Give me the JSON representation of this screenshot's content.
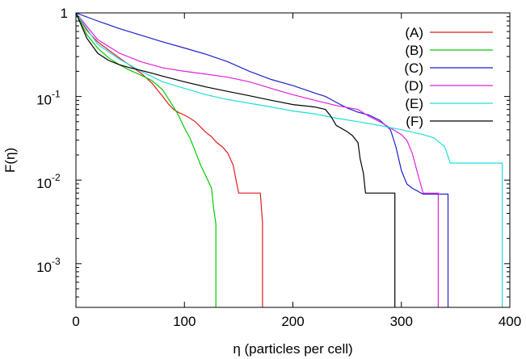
{
  "chart_data": {
    "type": "line",
    "xlabel": "η (particles per cell)",
    "ylabel": "F(η)",
    "xlim": [
      0,
      400
    ],
    "ylim": [
      0.0003,
      1
    ],
    "yscale": "log",
    "grid": false,
    "legend_position": "top-right",
    "x_ticks": [
      0,
      100,
      200,
      300,
      400
    ],
    "x_tick_labels": [
      "0",
      "100",
      "200",
      "300",
      "400"
    ],
    "y_ticks": [
      0.001,
      0.01,
      0.1,
      1
    ],
    "y_tick_base": "10",
    "y_tick_exponents": [
      "-3",
      "-2",
      "-1",
      ""
    ],
    "y_tick_top_label": "1",
    "series": [
      {
        "name": "(A)",
        "color": "#e41a1c",
        "points": [
          [
            0,
            1
          ],
          [
            10,
            0.62
          ],
          [
            20,
            0.45
          ],
          [
            30,
            0.36
          ],
          [
            40,
            0.29
          ],
          [
            50,
            0.235
          ],
          [
            60,
            0.19
          ],
          [
            70,
            0.145
          ],
          [
            75,
            0.12
          ],
          [
            80,
            0.1
          ],
          [
            85,
            0.082
          ],
          [
            90,
            0.07
          ],
          [
            95,
            0.064
          ],
          [
            100,
            0.06
          ],
          [
            105,
            0.055
          ],
          [
            110,
            0.05
          ],
          [
            115,
            0.043
          ],
          [
            120,
            0.037
          ],
          [
            125,
            0.033
          ],
          [
            130,
            0.028
          ],
          [
            135,
            0.025
          ],
          [
            140,
            0.021
          ],
          [
            145,
            0.015
          ],
          [
            147,
            0.011
          ],
          [
            150,
            0.007
          ],
          [
            170,
            0.007
          ],
          [
            172,
            0.0031
          ],
          [
            172,
            0.0003
          ]
        ]
      },
      {
        "name": "(B)",
        "color": "#00cc00",
        "points": [
          [
            0,
            1
          ],
          [
            10,
            0.55
          ],
          [
            20,
            0.38
          ],
          [
            30,
            0.29
          ],
          [
            40,
            0.24
          ],
          [
            50,
            0.205
          ],
          [
            60,
            0.18
          ],
          [
            70,
            0.155
          ],
          [
            80,
            0.12
          ],
          [
            85,
            0.095
          ],
          [
            90,
            0.075
          ],
          [
            95,
            0.058
          ],
          [
            100,
            0.042
          ],
          [
            105,
            0.032
          ],
          [
            110,
            0.022
          ],
          [
            115,
            0.015
          ],
          [
            120,
            0.011
          ],
          [
            125,
            0.008
          ],
          [
            127,
            0.0045
          ],
          [
            129,
            0.003
          ],
          [
            129,
            0.0003
          ]
        ]
      },
      {
        "name": "(C)",
        "color": "#1f1fcc",
        "points": [
          [
            0,
            1
          ],
          [
            20,
            0.8
          ],
          [
            40,
            0.65
          ],
          [
            60,
            0.54
          ],
          [
            80,
            0.45
          ],
          [
            100,
            0.38
          ],
          [
            120,
            0.32
          ],
          [
            140,
            0.26
          ],
          [
            160,
            0.2
          ],
          [
            180,
            0.16
          ],
          [
            200,
            0.135
          ],
          [
            220,
            0.11
          ],
          [
            230,
            0.1
          ],
          [
            240,
            0.085
          ],
          [
            250,
            0.073
          ],
          [
            260,
            0.065
          ],
          [
            270,
            0.06
          ],
          [
            280,
            0.052
          ],
          [
            290,
            0.04
          ],
          [
            295,
            0.025
          ],
          [
            300,
            0.013
          ],
          [
            305,
            0.009
          ],
          [
            310,
            0.008
          ],
          [
            320,
            0.0068
          ],
          [
            343,
            0.0068
          ],
          [
            343,
            0.0003
          ]
        ]
      },
      {
        "name": "(D)",
        "color": "#dd22dd",
        "points": [
          [
            0,
            1
          ],
          [
            20,
            0.48
          ],
          [
            40,
            0.33
          ],
          [
            60,
            0.26
          ],
          [
            80,
            0.22
          ],
          [
            100,
            0.2
          ],
          [
            120,
            0.185
          ],
          [
            140,
            0.17
          ],
          [
            160,
            0.15
          ],
          [
            180,
            0.125
          ],
          [
            200,
            0.105
          ],
          [
            220,
            0.09
          ],
          [
            240,
            0.078
          ],
          [
            260,
            0.07
          ],
          [
            270,
            0.058
          ],
          [
            280,
            0.05
          ],
          [
            290,
            0.042
          ],
          [
            300,
            0.035
          ],
          [
            305,
            0.03
          ],
          [
            310,
            0.021
          ],
          [
            315,
            0.012
          ],
          [
            320,
            0.007
          ],
          [
            334,
            0.007
          ],
          [
            334,
            0.0003
          ]
        ]
      },
      {
        "name": "(E)",
        "color": "#22dddd",
        "points": [
          [
            0,
            1
          ],
          [
            20,
            0.42
          ],
          [
            40,
            0.28
          ],
          [
            60,
            0.2
          ],
          [
            80,
            0.15
          ],
          [
            100,
            0.125
          ],
          [
            120,
            0.105
          ],
          [
            140,
            0.092
          ],
          [
            160,
            0.083
          ],
          [
            180,
            0.075
          ],
          [
            200,
            0.067
          ],
          [
            220,
            0.062
          ],
          [
            240,
            0.055
          ],
          [
            260,
            0.05
          ],
          [
            280,
            0.045
          ],
          [
            300,
            0.04
          ],
          [
            320,
            0.035
          ],
          [
            330,
            0.032
          ],
          [
            340,
            0.025
          ],
          [
            345,
            0.016
          ],
          [
            393,
            0.016
          ],
          [
            393,
            0.0003
          ]
        ]
      },
      {
        "name": "(F)",
        "color": "#000000",
        "points": [
          [
            0,
            1
          ],
          [
            10,
            0.5
          ],
          [
            20,
            0.33
          ],
          [
            30,
            0.27
          ],
          [
            40,
            0.24
          ],
          [
            50,
            0.22
          ],
          [
            60,
            0.205
          ],
          [
            70,
            0.19
          ],
          [
            80,
            0.175
          ],
          [
            100,
            0.15
          ],
          [
            120,
            0.13
          ],
          [
            140,
            0.115
          ],
          [
            160,
            0.102
          ],
          [
            180,
            0.09
          ],
          [
            200,
            0.08
          ],
          [
            220,
            0.075
          ],
          [
            230,
            0.07
          ],
          [
            235,
            0.058
          ],
          [
            240,
            0.045
          ],
          [
            250,
            0.038
          ],
          [
            255,
            0.034
          ],
          [
            260,
            0.028
          ],
          [
            262,
            0.018
          ],
          [
            265,
            0.012
          ],
          [
            267,
            0.007
          ],
          [
            294,
            0.007
          ],
          [
            294,
            0.0003
          ]
        ]
      }
    ]
  }
}
